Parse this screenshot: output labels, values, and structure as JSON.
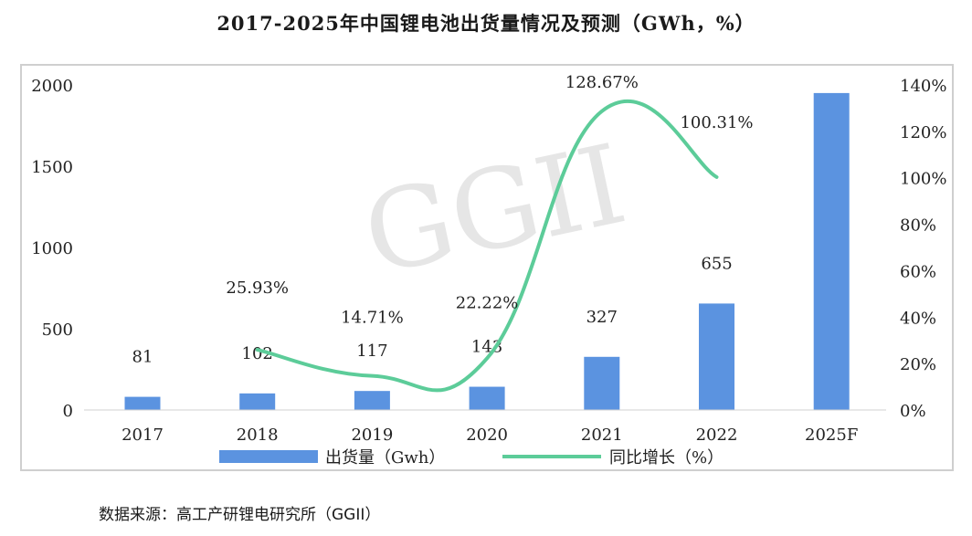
{
  "title": "2017-2025年中国锂电池出货量情况及预测（GWh，%）",
  "source": "数据来源：高工产研锂电研究所（GGII）",
  "watermark": "GGII",
  "colors": {
    "bar": "#5b93e0",
    "line": "#5ccc99",
    "watermark": "#e6e6e6",
    "frame": "#cfcfcf",
    "text": "#222222"
  },
  "chart_data": {
    "type": "bar",
    "categories": [
      "2017",
      "2018",
      "2019",
      "2020",
      "2021",
      "2022",
      "2025F"
    ],
    "series": [
      {
        "name": "出货量（Gwh）",
        "type": "bar",
        "axis": "left",
        "values": [
          81,
          102,
          117,
          143,
          327,
          655,
          1950
        ],
        "labels": [
          "81",
          "102",
          "117",
          "143",
          "327",
          "655",
          ""
        ]
      },
      {
        "name": "同比增长（%）",
        "type": "line",
        "axis": "right",
        "values": [
          null,
          25.93,
          14.71,
          22.22,
          128.67,
          100.31,
          null
        ],
        "labels": [
          "",
          "25.93%",
          "14.71%",
          "22.22%",
          "128.67%",
          "100.31%",
          ""
        ]
      }
    ],
    "y_left": {
      "min": 0,
      "max": 2000,
      "ticks": [
        "0",
        "500",
        "1000",
        "1500",
        "2000"
      ]
    },
    "y_right": {
      "min": 0,
      "max": 140,
      "ticks": [
        "0%",
        "20%",
        "40%",
        "60%",
        "80%",
        "100%",
        "120%",
        "140%"
      ]
    },
    "grid": false,
    "legend_position": "bottom"
  }
}
